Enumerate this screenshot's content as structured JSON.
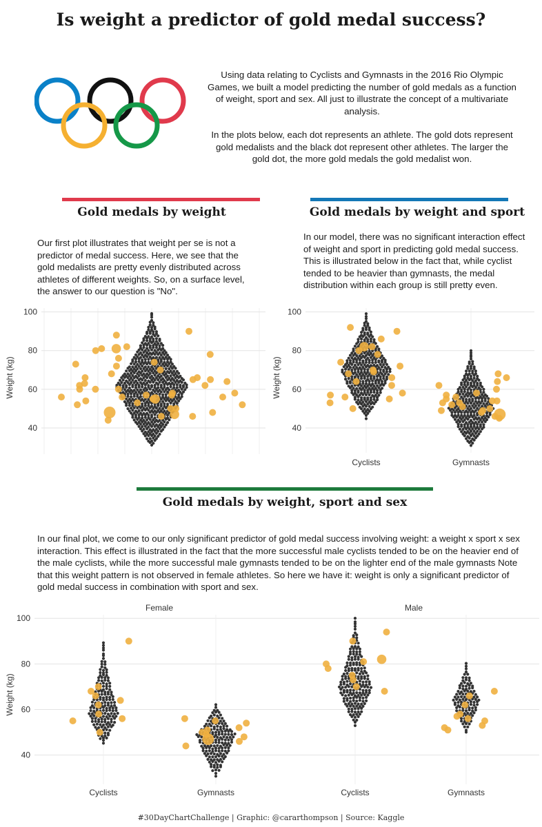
{
  "title": "Is weight a predictor of gold medal success?",
  "intro": {
    "p1": "Using data relating to Cyclists and Gymnasts in the 2016 Rio Olympic Games, we built a model predicting the number of gold medals as a function of weight, sport and sex. All just to illustrate the concept of a multivariate analysis.",
    "p2": "In the plots below, each dot represents an athlete. The gold dots represent gold medalists and the black dot represent other athletes. The larger the gold dot, the more gold medals the gold medalist won."
  },
  "colors": {
    "ring_blue": "#0a81c8",
    "ring_black": "#111111",
    "ring_red": "#e03a4c",
    "ring_yellow": "#f5b031",
    "ring_green": "#159848",
    "bar1": "#e03a4c",
    "bar2": "#1478b7",
    "bar3": "#1d7a3c",
    "athlete_dot": "#333333",
    "gold_dot": "#f0b040",
    "grid": "#e3e3e3"
  },
  "icons": [
    "olympic-rings-icon"
  ],
  "section1": {
    "title": "Gold medals by weight",
    "text": "Our first plot illustrates that weight per se is not a predictor of medal success. Here, we see that the gold medalists are pretty evenly distributed across athletes of different weights. So, on a surface level, the answer to our question is \"No\"."
  },
  "section2": {
    "title": "Gold medals by weight and sport",
    "text": "In our model, there was no significant interaction effect of weight and sport in predicting gold medal success. This is illustrated below in the fact that, while cyclist tended to be heavier than gymnasts, the medal distribution within each group is still pretty even."
  },
  "section3": {
    "title": "Gold medals by weight, sport and sex",
    "text": "In our final plot, we come to our only significant predictor of gold medal success involving weight: a weight x sport x sex interaction. This effect is illustrated in the fact that the more successful male cyclists tended to be on the heavier end of the male cyclists, while the more successful male gymnasts tended to be on the lighter end of the male gymnasts Note that this weight pattern is not observed in female athletes. So here we have it: weight is only a significant predictor of gold medal success in combination with sport and sex."
  },
  "footer": "#30DayChartChallenge | Graphic: @cararthompson | Source: Kaggle",
  "chart_data": [
    {
      "type": "scatter",
      "title": "Gold medals by weight",
      "ylabel": "Weight (kg)",
      "ylim": [
        30,
        102
      ],
      "yticks": [
        40,
        60,
        80,
        100
      ],
      "grid": true,
      "groups": [
        {
          "name": "",
          "min": 31,
          "max": 100,
          "median": 60,
          "peak": 62,
          "n_athletes": 640,
          "gold": [
            [
              66,
              1
            ],
            [
              56,
              1
            ],
            [
              62,
              1
            ],
            [
              57,
              1
            ],
            [
              48,
              3
            ],
            [
              47,
              2
            ],
            [
              55,
              2
            ],
            [
              56,
              1
            ],
            [
              52,
              1
            ],
            [
              60,
              1
            ],
            [
              58,
              1
            ],
            [
              64,
              1
            ],
            [
              68,
              1
            ],
            [
              70,
              1
            ],
            [
              74,
              1
            ],
            [
              78,
              1
            ],
            [
              80,
              1
            ],
            [
              81,
              2
            ],
            [
              82,
              1
            ],
            [
              88,
              1
            ],
            [
              90,
              1
            ],
            [
              76,
              1
            ],
            [
              72,
              1
            ],
            [
              63,
              1
            ],
            [
              60,
              1
            ],
            [
              57,
              1
            ],
            [
              52,
              1
            ],
            [
              54,
              1
            ],
            [
              50,
              1
            ],
            [
              46,
              1
            ],
            [
              48,
              1
            ],
            [
              62,
              1
            ],
            [
              65,
              1
            ],
            [
              58,
              1
            ],
            [
              55,
              1
            ],
            [
              53,
              1
            ],
            [
              56,
              1
            ],
            [
              60,
              1
            ],
            [
              81,
              1
            ],
            [
              73,
              1
            ],
            [
              44,
              1
            ],
            [
              46,
              1
            ],
            [
              50,
              1
            ],
            [
              66,
              1
            ],
            [
              65,
              1
            ]
          ]
        }
      ]
    },
    {
      "type": "scatter",
      "title": "Gold medals by weight and sport",
      "ylabel": "Weight (kg)",
      "ylim": [
        30,
        102
      ],
      "yticks": [
        40,
        60,
        80,
        100
      ],
      "categories": [
        "Cyclists",
        "Gymnasts"
      ],
      "grid": true,
      "groups": [
        {
          "name": "Cyclists",
          "min": 45,
          "max": 100,
          "median": 67,
          "peak": 70,
          "n_athletes": 360,
          "gold": [
            [
              82,
              2
            ],
            [
              80,
              1
            ],
            [
              78,
              1
            ],
            [
              74,
              1
            ],
            [
              72,
              1
            ],
            [
              69,
              1
            ],
            [
              66,
              1
            ],
            [
              64,
              1
            ],
            [
              62,
              1
            ],
            [
              58,
              1
            ],
            [
              57,
              1
            ],
            [
              55,
              1
            ],
            [
              53,
              1
            ],
            [
              50,
              1
            ],
            [
              90,
              1
            ],
            [
              92,
              1
            ],
            [
              86,
              1
            ],
            [
              82,
              1
            ],
            [
              68,
              1
            ],
            [
              70,
              1
            ],
            [
              56,
              1
            ]
          ]
        },
        {
          "name": "Gymnasts",
          "min": 31,
          "max": 81,
          "median": 52,
          "peak": 50,
          "n_athletes": 290,
          "gold": [
            [
              47,
              3
            ],
            [
              49,
              1
            ],
            [
              51,
              1
            ],
            [
              53,
              1
            ],
            [
              54,
              1
            ],
            [
              55,
              1
            ],
            [
              56,
              1
            ],
            [
              57,
              1
            ],
            [
              60,
              1
            ],
            [
              64,
              1
            ],
            [
              66,
              1
            ],
            [
              68,
              1
            ],
            [
              52,
              1
            ],
            [
              50,
              1
            ],
            [
              48,
              1
            ],
            [
              46,
              1
            ],
            [
              45,
              1
            ],
            [
              58,
              1
            ],
            [
              62,
              1
            ],
            [
              54,
              1
            ],
            [
              49,
              1
            ],
            [
              53,
              1
            ]
          ]
        }
      ]
    },
    {
      "type": "scatter",
      "title": "Gold medals by weight, sport and sex",
      "ylabel": "Weight (kg)",
      "ylim": [
        29,
        104
      ],
      "yticks": [
        40,
        60,
        80,
        100
      ],
      "categories": [
        "Cyclists",
        "Gymnasts"
      ],
      "facets": [
        "Female",
        "Male"
      ],
      "grid": true,
      "panels": [
        {
          "facet": "Female",
          "groups": [
            {
              "name": "Cyclists",
              "min": 45,
              "max": 90,
              "median": 60,
              "peak": 58,
              "n_athletes": 170,
              "gold": [
                [
                  90,
                  1
                ],
                [
                  70,
                  1
                ],
                [
                  68,
                  1
                ],
                [
                  66,
                  1
                ],
                [
                  64,
                  1
                ],
                [
                  62,
                  1
                ],
                [
                  58,
                  1
                ],
                [
                  56,
                  1
                ],
                [
                  55,
                  1
                ],
                [
                  50,
                  1
                ]
              ]
            },
            {
              "name": "Gymnasts",
              "min": 31,
              "max": 63,
              "median": 50,
              "peak": 49,
              "n_athletes": 170,
              "gold": [
                [
                  47,
                  3
                ],
                [
                  48,
                  1
                ],
                [
                  50,
                  1
                ],
                [
                  52,
                  1
                ],
                [
                  54,
                  1
                ],
                [
                  55,
                  1
                ],
                [
                  44,
                  1
                ],
                [
                  46,
                  1
                ],
                [
                  49,
                  1
                ],
                [
                  51,
                  1
                ],
                [
                  56,
                  1
                ]
              ]
            }
          ]
        },
        {
          "facet": "Male",
          "groups": [
            {
              "name": "Cyclists",
              "min": 53,
              "max": 100,
              "median": 72,
              "peak": 70,
              "n_athletes": 200,
              "gold": [
                [
                  94,
                  1
                ],
                [
                  90,
                  1
                ],
                [
                  82,
                  2
                ],
                [
                  80,
                  1
                ],
                [
                  78,
                  1
                ],
                [
                  75,
                  1
                ],
                [
                  73,
                  1
                ],
                [
                  70,
                  1
                ],
                [
                  68,
                  1
                ],
                [
                  81,
                  1
                ]
              ]
            },
            {
              "name": "Gymnasts",
              "min": 50,
              "max": 81,
              "median": 62,
              "peak": 64,
              "n_athletes": 110,
              "gold": [
                [
                  68,
                  1
                ],
                [
                  66,
                  1
                ],
                [
                  62,
                  1
                ],
                [
                  58,
                  1
                ],
                [
                  56,
                  1
                ],
                [
                  55,
                  1
                ],
                [
                  53,
                  1
                ],
                [
                  52,
                  1
                ],
                [
                  51,
                  1
                ],
                [
                  57,
                  1
                ]
              ]
            }
          ]
        }
      ]
    }
  ]
}
